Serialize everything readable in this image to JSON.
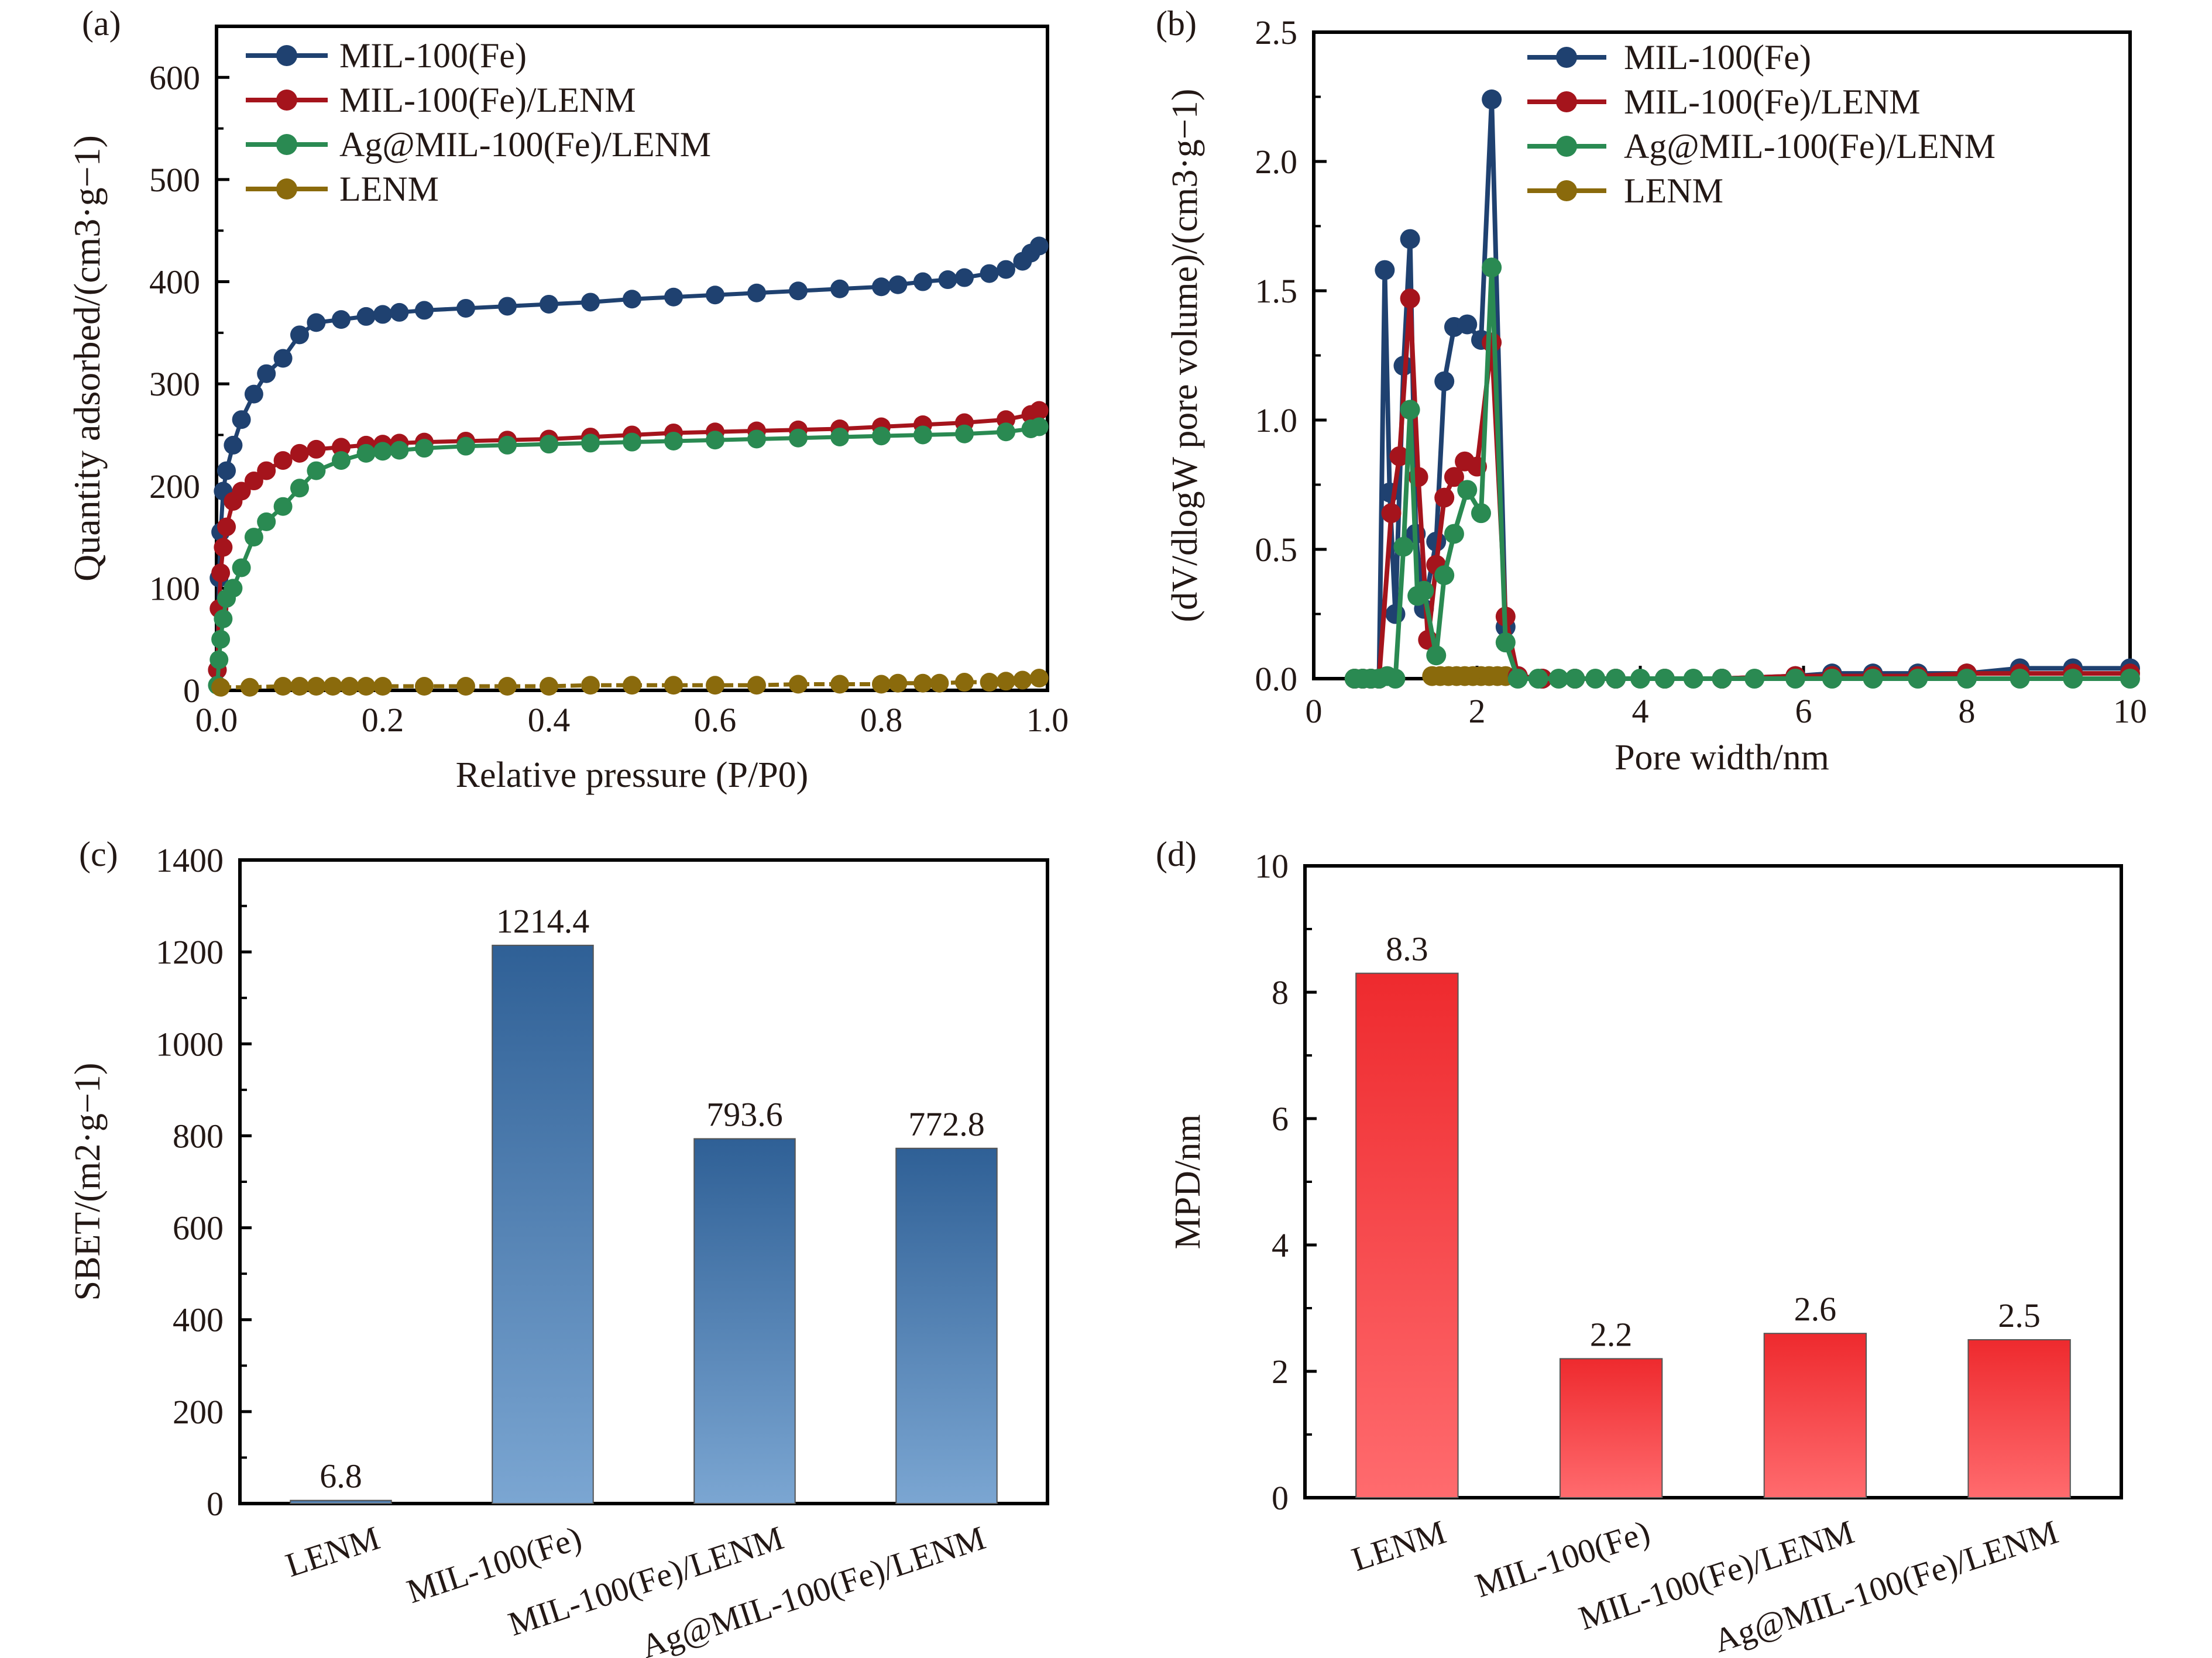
{
  "chart_data": [
    {
      "id": "a",
      "type": "scatter",
      "panel_label": "(a)",
      "title": "",
      "xlabel": "Relative pressure (P/P0)",
      "ylabel": "Quantity adsorbed/(cm3·g−1)",
      "xlim": [
        0.0,
        1.0
      ],
      "ylim": [
        0,
        650
      ],
      "xticks": [
        "0.0",
        "0.2",
        "0.4",
        "0.6",
        "0.8",
        "1.0"
      ],
      "xtick_values": [
        0,
        0.2,
        0.4,
        0.6,
        0.8,
        1.0
      ],
      "yticks": [
        "0",
        "100",
        "200",
        "300",
        "400",
        "500",
        "600"
      ],
      "ytick_values": [
        0,
        100,
        200,
        300,
        400,
        500,
        600
      ],
      "legend_position": "top-left",
      "series": [
        {
          "name": "MIL-100(Fe)",
          "color": "#1f4170",
          "x": [
            0.001,
            0.003,
            0.005,
            0.008,
            0.012,
            0.02,
            0.03,
            0.045,
            0.06,
            0.08,
            0.1,
            0.12,
            0.15,
            0.18,
            0.2,
            0.22,
            0.25,
            0.3,
            0.35,
            0.4,
            0.45,
            0.5,
            0.55,
            0.6,
            0.65,
            0.7,
            0.75,
            0.8,
            0.82,
            0.85,
            0.88,
            0.9,
            0.93,
            0.95,
            0.97,
            0.98,
            0.99
          ],
          "y": [
            20,
            110,
            155,
            195,
            215,
            240,
            265,
            290,
            310,
            325,
            348,
            360,
            363,
            366,
            368,
            370,
            372,
            374,
            376,
            378,
            380,
            383,
            385,
            387,
            389,
            391,
            393,
            395,
            397,
            400,
            402,
            404,
            408,
            412,
            420,
            428,
            435
          ]
        },
        {
          "name": "MIL-100(Fe)/LENM",
          "color": "#a5141c",
          "x": [
            0.001,
            0.003,
            0.005,
            0.008,
            0.012,
            0.02,
            0.03,
            0.045,
            0.06,
            0.08,
            0.1,
            0.12,
            0.15,
            0.18,
            0.2,
            0.22,
            0.25,
            0.3,
            0.35,
            0.4,
            0.45,
            0.5,
            0.55,
            0.6,
            0.65,
            0.7,
            0.75,
            0.8,
            0.85,
            0.9,
            0.95,
            0.98,
            0.99
          ],
          "y": [
            20,
            80,
            115,
            140,
            160,
            185,
            195,
            205,
            215,
            225,
            232,
            236,
            238,
            240,
            241,
            242,
            243,
            244,
            245,
            246,
            248,
            250,
            252,
            253,
            254,
            255,
            256,
            258,
            260,
            262,
            265,
            270,
            274
          ]
        },
        {
          "name": "Ag@MIL-100(Fe)/LENM",
          "color": "#2a8a52",
          "x": [
            0.001,
            0.003,
            0.005,
            0.008,
            0.012,
            0.02,
            0.03,
            0.045,
            0.06,
            0.08,
            0.1,
            0.12,
            0.15,
            0.18,
            0.2,
            0.22,
            0.25,
            0.3,
            0.35,
            0.4,
            0.45,
            0.5,
            0.55,
            0.6,
            0.65,
            0.7,
            0.75,
            0.8,
            0.85,
            0.9,
            0.95,
            0.98,
            0.99
          ],
          "y": [
            5,
            30,
            50,
            70,
            90,
            100,
            120,
            150,
            165,
            180,
            198,
            215,
            225,
            232,
            234,
            235,
            237,
            239,
            240,
            241,
            242,
            243,
            244,
            245,
            246,
            247,
            248,
            249,
            250,
            251,
            253,
            256,
            258
          ]
        },
        {
          "name": "LENM",
          "color": "#8a6a0c",
          "x": [
            0.005,
            0.04,
            0.08,
            0.1,
            0.12,
            0.14,
            0.16,
            0.18,
            0.2,
            0.25,
            0.3,
            0.35,
            0.4,
            0.45,
            0.5,
            0.55,
            0.6,
            0.65,
            0.7,
            0.75,
            0.8,
            0.82,
            0.85,
            0.87,
            0.9,
            0.93,
            0.95,
            0.97,
            0.99
          ],
          "y": [
            3,
            3,
            4,
            4,
            4,
            4,
            4,
            4,
            4,
            4,
            4,
            4,
            4,
            5,
            5,
            5,
            5,
            5,
            6,
            6,
            6,
            7,
            7,
            7,
            8,
            8,
            9,
            10,
            12
          ]
        }
      ]
    },
    {
      "id": "b",
      "type": "line",
      "panel_label": "(b)",
      "title": "",
      "xlabel": "Pore width/nm",
      "ylabel": "(dV/dlogW pore volume)/(cm3·g−1)",
      "xlim": [
        0,
        10
      ],
      "ylim": [
        0,
        2.5
      ],
      "xticks": [
        "0",
        "2",
        "4",
        "6",
        "8",
        "10"
      ],
      "xtick_values": [
        0,
        2,
        4,
        6,
        8,
        10
      ],
      "yticks": [
        "0.0",
        "0.5",
        "1.0",
        "1.5",
        "2.0",
        "2.5"
      ],
      "ytick_values": [
        0,
        0.5,
        1.0,
        1.5,
        2.0,
        2.5
      ],
      "legend_position": "top-right",
      "series": [
        {
          "name": "MIL-100(Fe)",
          "color": "#1f4170",
          "x": [
            0.5,
            0.6,
            0.7,
            0.8,
            0.87,
            0.93,
            1.0,
            1.1,
            1.18,
            1.25,
            1.35,
            1.5,
            1.6,
            1.72,
            1.88,
            2.05,
            2.18,
            2.35,
            2.5,
            2.8,
            3.2,
            3.7,
            4.3,
            5.0,
            5.9,
            6.35,
            6.85,
            7.4,
            8.0,
            8.65,
            9.3,
            10.0
          ],
          "x_note": "",
          "y": [
            0.0,
            0.0,
            0.0,
            0.0,
            1.58,
            0.72,
            0.25,
            1.21,
            1.7,
            0.56,
            0.27,
            0.53,
            1.15,
            1.36,
            1.37,
            1.31,
            2.24,
            0.2,
            0.01,
            0.0,
            0.0,
            0.0,
            0.0,
            0.0,
            0.01,
            0.02,
            0.02,
            0.02,
            0.02,
            0.04,
            0.04,
            0.04
          ]
        },
        {
          "name": "MIL-100(Fe)/LENM",
          "color": "#a5141c",
          "x": [
            0.5,
            0.6,
            0.7,
            0.8,
            0.95,
            1.05,
            1.18,
            1.28,
            1.4,
            1.5,
            1.6,
            1.72,
            1.85,
            2.0,
            2.18,
            2.35,
            2.5,
            2.8,
            3.2,
            3.7,
            4.3,
            5.0,
            5.9,
            6.35,
            6.85,
            7.4,
            8.0,
            8.65,
            9.3,
            10.0
          ],
          "y": [
            0.0,
            0.0,
            0.0,
            0.0,
            0.64,
            0.86,
            1.47,
            0.78,
            0.15,
            0.44,
            0.7,
            0.78,
            0.84,
            0.82,
            1.3,
            0.24,
            0.01,
            0.0,
            0.0,
            0.0,
            0.0,
            0.0,
            0.01,
            0.01,
            0.01,
            0.01,
            0.02,
            0.02,
            0.02,
            0.02
          ]
        },
        {
          "name": "Ag@MIL-100(Fe)/LENM",
          "color": "#2a8a52",
          "x": [
            0.5,
            0.6,
            0.7,
            0.8,
            0.9,
            1.0,
            1.1,
            1.18,
            1.27,
            1.35,
            1.5,
            1.6,
            1.72,
            1.88,
            2.05,
            2.18,
            2.35,
            2.5,
            2.75,
            3.0,
            3.2,
            3.45,
            3.7,
            4.0,
            4.3,
            4.65,
            5.0,
            5.4,
            5.9,
            6.35,
            6.85,
            7.4,
            8.0,
            8.65,
            9.3,
            10.0
          ],
          "y": [
            0.0,
            0.0,
            0.0,
            0.0,
            0.01,
            0.0,
            0.51,
            1.04,
            0.32,
            0.34,
            0.09,
            0.4,
            0.56,
            0.73,
            0.64,
            1.59,
            0.14,
            0.0,
            0.0,
            0.0,
            0.0,
            0.0,
            0.0,
            0.0,
            0.0,
            0.0,
            0.0,
            0.0,
            0.0,
            0.0,
            0.0,
            0.0,
            0.0,
            0.0,
            0.0,
            0.0
          ]
        },
        {
          "name": "LENM",
          "color": "#8a6a0c",
          "x": [
            1.45,
            1.55,
            1.65,
            1.75,
            1.85,
            1.95,
            2.05,
            2.15,
            2.25,
            2.35
          ],
          "y": [
            0.01,
            0.01,
            0.01,
            0.01,
            0.01,
            0.01,
            0.01,
            0.01,
            0.01,
            0.01
          ]
        }
      ]
    },
    {
      "id": "c",
      "type": "bar",
      "panel_label": "(c)",
      "title": "",
      "xlabel": "",
      "ylabel": "SBET/(m2·g−1)",
      "ylim": [
        0,
        1400
      ],
      "yticks": [
        "0",
        "200",
        "400",
        "600",
        "800",
        "1000",
        "1200",
        "1400"
      ],
      "ytick_values": [
        0,
        200,
        400,
        600,
        800,
        1000,
        1200,
        1400
      ],
      "categories": [
        "LENM",
        "MIL-100(Fe)",
        "MIL-100(Fe)/LENM",
        "Ag@MIL-100(Fe)/LENM"
      ],
      "values": [
        6.8,
        1214.4,
        793.6,
        772.8
      ],
      "value_labels": [
        "6.8",
        "1214.4",
        "793.6",
        "772.8"
      ],
      "value_label_colors": [
        "#231815",
        "#231815",
        "#231815",
        "#e60012"
      ],
      "bar_color_top": "#2f6096",
      "bar_color_bottom": "#7ba6d2"
    },
    {
      "id": "d",
      "type": "bar",
      "panel_label": "(d)",
      "title": "",
      "xlabel": "",
      "ylabel": "MPD/nm",
      "ylim": [
        0,
        10
      ],
      "yticks": [
        "0",
        "2",
        "4",
        "6",
        "8",
        "10"
      ],
      "ytick_values": [
        0,
        2,
        4,
        6,
        8,
        10
      ],
      "categories": [
        "LENM",
        "MIL-100(Fe)",
        "MIL-100(Fe)/LENM",
        "Ag@MIL-100(Fe)/LENM"
      ],
      "values": [
        8.3,
        2.2,
        2.6,
        2.5
      ],
      "value_labels": [
        "8.3",
        "2.2",
        "2.6",
        "2.5"
      ],
      "value_label_colors": [
        "#231815",
        "#231815",
        "#231815",
        "#e60012"
      ],
      "bar_color_top": "#ee2a2e",
      "bar_color_bottom": "#ff6b6e"
    }
  ]
}
